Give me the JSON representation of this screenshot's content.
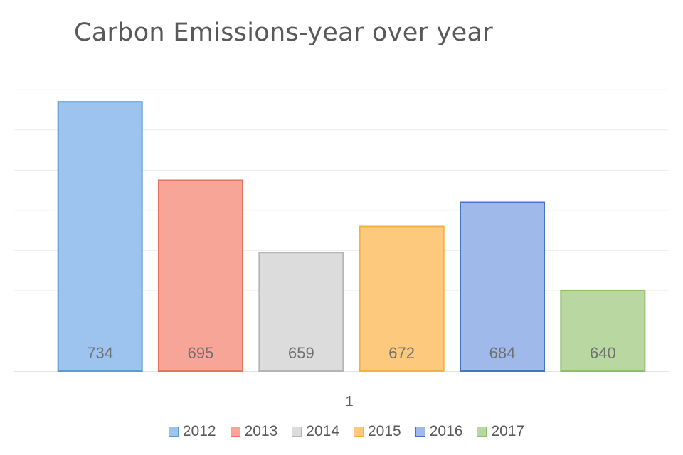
{
  "chart_data": {
    "type": "bar",
    "title": "Carbon Emissions-year over year",
    "categories": [
      "1"
    ],
    "series": [
      {
        "name": "2012",
        "values": [
          734
        ],
        "fill": "#9dc3ef",
        "stroke": "#5b9bd5"
      },
      {
        "name": "2013",
        "values": [
          695
        ],
        "fill": "#f7a597",
        "stroke": "#e8735f"
      },
      {
        "name": "2014",
        "values": [
          659
        ],
        "fill": "#dcdcdc",
        "stroke": "#b5b5b5"
      },
      {
        "name": "2015",
        "values": [
          672
        ],
        "fill": "#fdc97c",
        "stroke": "#f5b041"
      },
      {
        "name": "2016",
        "values": [
          684
        ],
        "fill": "#9fbaea",
        "stroke": "#4472c4"
      },
      {
        "name": "2017",
        "values": [
          640
        ],
        "fill": "#b9d7a0",
        "stroke": "#8bbf6a"
      }
    ],
    "ylim": [
      600,
      750
    ],
    "data_labels": "inside-base",
    "grid": true,
    "legend_position": "bottom",
    "xlabel": "",
    "ylabel": ""
  }
}
